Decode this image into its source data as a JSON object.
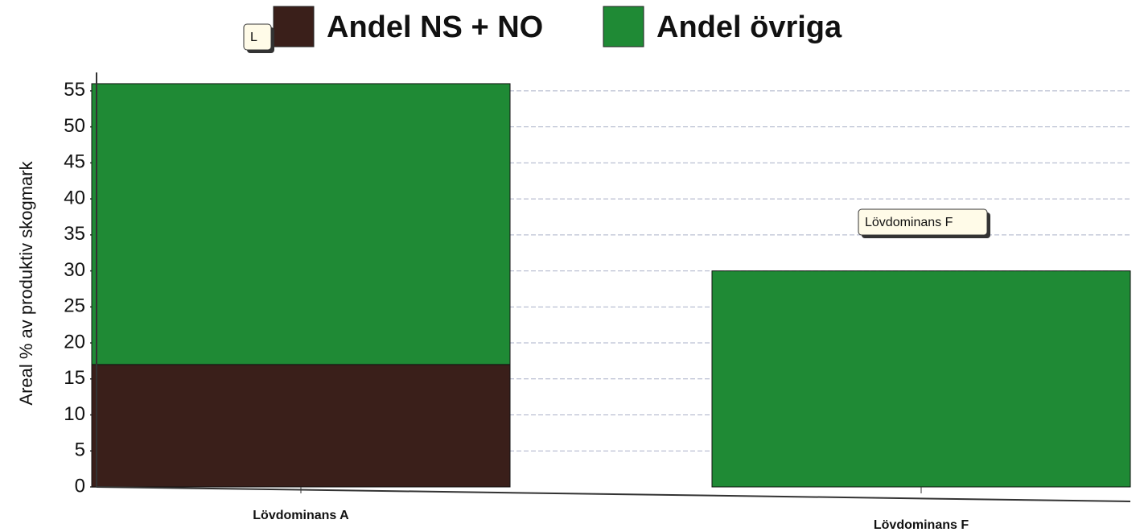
{
  "chart_data": {
    "type": "stacked_bar",
    "ylabel": "Areal % av produktiv skogmark",
    "categories": [
      "Lövdominans A",
      "Lövdominans F"
    ],
    "series": [
      {
        "name": "Andel NS + NO",
        "color": "#3a1f1a",
        "values": [
          17,
          0
        ]
      },
      {
        "name": "Andel övriga",
        "color": "#1f8a35",
        "values": [
          39,
          30
        ]
      }
    ],
    "annotations": [
      "L",
      "Lövdominans F"
    ],
    "ylim": [
      0,
      57
    ],
    "yticks": [
      0,
      5,
      10,
      15,
      20,
      25,
      30,
      35,
      40,
      45,
      50,
      55
    ],
    "grid": true,
    "legend": "top"
  }
}
